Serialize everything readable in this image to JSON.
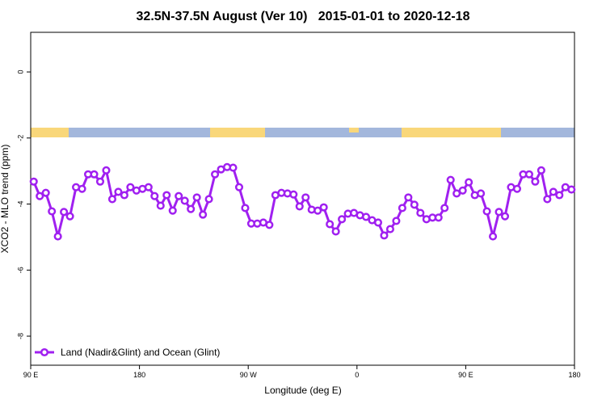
{
  "chart_data": {
    "type": "line",
    "title": "32.5N-37.5N August (Ver 10)   2015-01-01 to 2020-12-18",
    "xlabel": "Longitude (deg E)",
    "ylabel": "XCO2 - MLO trend (ppm)",
    "xlim": [
      90,
      540
    ],
    "ylim": [
      -8.88,
      1.2
    ],
    "xticks": [
      {
        "value": 90,
        "label": "90 E"
      },
      180,
      {
        "value": 270,
        "label": "90 W"
      },
      {
        "value": 360,
        "label": "0"
      },
      {
        "value": 450,
        "label": "90 E"
      },
      {
        "value": 540,
        "label": "180"
      }
    ],
    "yticks": [
      0,
      -2,
      -4,
      -6,
      -8
    ],
    "legend": "bottom-left",
    "x": [
      92.5,
      97.5,
      102.5,
      107.5,
      112.5,
      117.5,
      122.5,
      127.5,
      132.5,
      137.5,
      142.5,
      147.5,
      152.5,
      157.5,
      162.5,
      167.5,
      172.5,
      177.5,
      182.5,
      187.5,
      192.5,
      197.5,
      202.5,
      207.5,
      212.5,
      217.5,
      222.5,
      227.5,
      232.5,
      237.5,
      242.5,
      247.5,
      252.5,
      257.5,
      262.5,
      267.5,
      272.5,
      277.5,
      282.5,
      287.5,
      292.5,
      297.5,
      302.5,
      307.5,
      312.5,
      317.5,
      322.5,
      327.5,
      332.5,
      337.5,
      342.5,
      347.5,
      352.5,
      357.5,
      362.5,
      367.5,
      372.5,
      377.5,
      382.5,
      387.5,
      392.5,
      397.5,
      402.5,
      407.5,
      412.5,
      417.5,
      422.5,
      427.5,
      432.5,
      437.5,
      442.5,
      447.5,
      452.5,
      457.5,
      462.5,
      467.5,
      472.5,
      477.5,
      482.5,
      487.5,
      492.5,
      497.5,
      502.5,
      507.5,
      512.5,
      517.5,
      522.5,
      527.5,
      532.5,
      537.5
    ],
    "series": [
      {
        "name": "Land (Nadir&Glint) and Ocean (Glint)",
        "color": "#a020f0",
        "values": [
          -3.32,
          -3.76,
          -3.66,
          -4.22,
          -4.98,
          -4.24,
          -4.37,
          -3.49,
          -3.54,
          -3.1,
          -3.1,
          -3.32,
          -2.98,
          -3.85,
          -3.63,
          -3.73,
          -3.49,
          -3.59,
          -3.54,
          -3.49,
          -3.76,
          -4.05,
          -3.73,
          -4.2,
          -3.76,
          -3.9,
          -4.15,
          -3.8,
          -4.32,
          -3.85,
          -3.1,
          -2.95,
          -2.88,
          -2.9,
          -3.49,
          -4.12,
          -4.59,
          -4.59,
          -4.56,
          -4.63,
          -3.73,
          -3.66,
          -3.68,
          -3.71,
          -4.07,
          -3.8,
          -4.17,
          -4.2,
          -4.1,
          -4.61,
          -4.83,
          -4.46,
          -4.29,
          -4.27,
          -4.34,
          -4.39,
          -4.49,
          -4.56,
          -4.95,
          -4.76,
          -4.51,
          -4.12,
          -3.8,
          -4.02,
          -4.27,
          -4.46,
          -4.41,
          -4.41,
          -4.12,
          -3.27,
          -3.68,
          -3.59,
          -3.34,
          -3.73,
          -3.68,
          -4.22,
          -4.98,
          -4.24,
          -4.37,
          -3.49,
          -3.54,
          -3.1,
          -3.1,
          -3.32,
          -2.98,
          -3.85,
          -3.63,
          -3.73,
          -3.49,
          -3.56
        ]
      }
    ]
  }
}
